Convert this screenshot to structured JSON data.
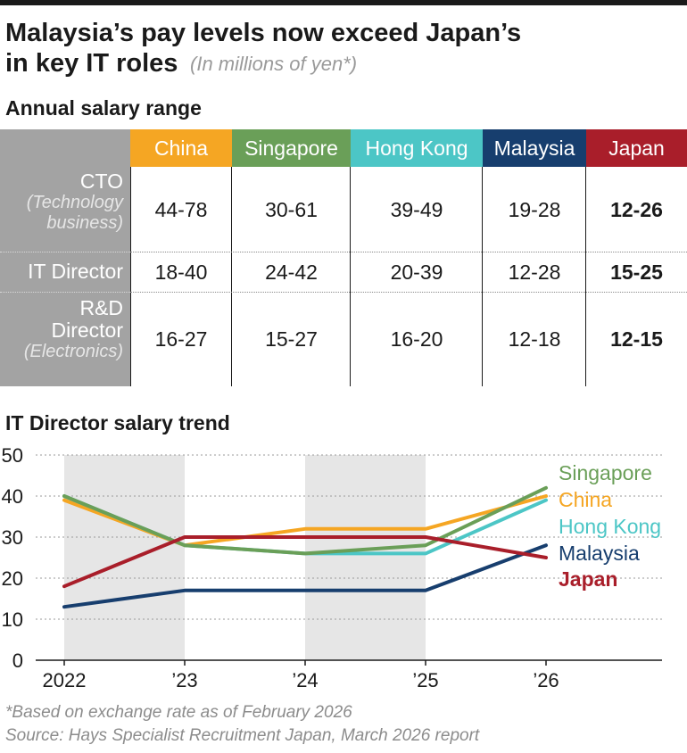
{
  "title": {
    "main": "Malaysia’s pay levels now exceed Japan’s in key IT roles",
    "unit_note": "(In millions of yen*)"
  },
  "salary_section": {
    "heading": "Annual salary range",
    "columns": [
      {
        "label": "China",
        "color": "#f5a623"
      },
      {
        "label": "Singapore",
        "color": "#6a9f58"
      },
      {
        "label": "Hong Kong",
        "color": "#4cc6c6"
      },
      {
        "label": "Malaysia",
        "color": "#173e6e"
      },
      {
        "label": "Japan",
        "color": "#a91e2a"
      }
    ],
    "rows": [
      {
        "role": "CTO",
        "role_sub": "(Technology business)",
        "values": [
          "44-78",
          "30-61",
          "39-49",
          "19-28",
          "12-26"
        ]
      },
      {
        "role": "IT Director",
        "role_sub": "",
        "values": [
          "18-40",
          "24-42",
          "20-39",
          "12-28",
          "15-25"
        ]
      },
      {
        "role": "R&D Director",
        "role_sub": "(Electronics)",
        "values": [
          "16-27",
          "15-27",
          "16-20",
          "12-18",
          "12-15"
        ]
      }
    ]
  },
  "trend_section": {
    "heading": "IT Director salary trend"
  },
  "chart_data": {
    "type": "line",
    "title": "IT Director salary trend",
    "x": [
      "2022",
      "’23",
      "’24",
      "’25",
      "’26"
    ],
    "ylim": [
      0,
      50
    ],
    "yticks": [
      0,
      10,
      20,
      30,
      40,
      50
    ],
    "shaded_intervals": [
      [
        "2022",
        "’23"
      ],
      [
        "’24",
        "’25"
      ]
    ],
    "series": [
      {
        "name": "Singapore",
        "color": "#6a9f58",
        "values": [
          40,
          28,
          26,
          28,
          42
        ]
      },
      {
        "name": "China",
        "color": "#f5a623",
        "values": [
          39,
          28,
          32,
          32,
          40
        ]
      },
      {
        "name": "Hong Kong",
        "color": "#4cc6c6",
        "values": [
          40,
          28,
          26,
          26,
          39
        ]
      },
      {
        "name": "Malaysia",
        "color": "#173e6e",
        "values": [
          13,
          17,
          17,
          17,
          28
        ]
      },
      {
        "name": "Japan",
        "color": "#a91e2a",
        "values": [
          18,
          30,
          30,
          30,
          25
        ]
      }
    ]
  },
  "footnotes": {
    "exchange": "*Based on exchange rate as of February 2026",
    "source": "Source: Hays Specialist Recruitment Japan, March 2026 report"
  }
}
